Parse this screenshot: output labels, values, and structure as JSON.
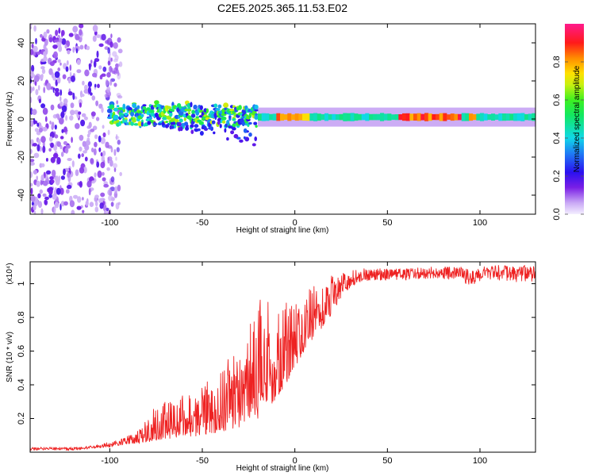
{
  "figure_title": "C2E5.2025.365.11.53.E02",
  "colors": {
    "snr_line": "#ee2222",
    "axis": "#000000"
  },
  "chart_data": [
    {
      "type": "heatmap",
      "xlabel": "Height of straight line (km)",
      "ylabel": "Frequency (Hz)",
      "xlim": [
        -143,
        130
      ],
      "ylim": [
        -50,
        50
      ],
      "xticks": [
        -100,
        -50,
        0,
        50,
        100
      ],
      "yticks": [
        -40,
        -20,
        0,
        20,
        40
      ],
      "colorbar": {
        "label": "Normalized spectral amplitude",
        "range": [
          0,
          1
        ],
        "ticks": [
          "0.0",
          "0.2",
          "0.4",
          "0.6",
          "0.8"
        ],
        "tick_values": [
          0.0,
          0.2,
          0.4,
          0.6,
          0.8
        ],
        "colormap": "rainbow: white-lavender -> purple -> blue -> cyan -> green -> yellow -> red -> magenta"
      },
      "features": [
        {
          "region": "scattered noise",
          "x_range": [
            -143,
            -100
          ],
          "freq_range": [
            -50,
            50
          ],
          "amplitude": [
            0.05,
            0.2
          ]
        },
        {
          "region": "turbulent band",
          "x_range": [
            -100,
            -20
          ],
          "freq_center": 2,
          "freq_halfwidth": 4,
          "amplitude": [
            0.2,
            0.7
          ]
        },
        {
          "region": "narrow line",
          "x_range": [
            -20,
            130
          ],
          "freq_center": 1,
          "freq_halfwidth": 2,
          "amplitude": [
            0.4,
            0.9
          ]
        }
      ]
    },
    {
      "type": "line",
      "xlabel": "Height of straight line (km)",
      "ylabel": "SNR (10 * v/v)",
      "multiplier": "(x10⁴)",
      "xlim": [
        -143,
        130
      ],
      "ylim": [
        0,
        1.13
      ],
      "xticks": [
        -100,
        -50,
        0,
        50,
        100
      ],
      "yticks": [
        0.2,
        0.4,
        0.6,
        0.8,
        1
      ],
      "series": [
        {
          "name": "SNR",
          "x": [
            -143,
            -120,
            -110,
            -100,
            -95,
            -90,
            -85,
            -80,
            -75,
            -70,
            -60,
            -50,
            -40,
            -30,
            -20,
            -15,
            -10,
            -5,
            0,
            5,
            10,
            15,
            20,
            25,
            30,
            35,
            40,
            50,
            60,
            70,
            80,
            90,
            95,
            100,
            110,
            120,
            130
          ],
          "envelope_low": [
            0.01,
            0.01,
            0.02,
            0.03,
            0.04,
            0.05,
            0.05,
            0.06,
            0.07,
            0.08,
            0.09,
            0.1,
            0.12,
            0.15,
            0.2,
            0.25,
            0.32,
            0.4,
            0.5,
            0.6,
            0.68,
            0.74,
            0.82,
            0.92,
            0.98,
            1.01,
            1.02,
            1.02,
            1.02,
            1.03,
            1.03,
            1.02,
            0.98,
            1.01,
            1.02,
            1.01,
            1.01
          ],
          "envelope_high": [
            0.03,
            0.03,
            0.04,
            0.06,
            0.08,
            0.1,
            0.13,
            0.2,
            0.28,
            0.3,
            0.34,
            0.4,
            0.48,
            0.7,
            0.9,
            0.95,
            0.88,
            0.92,
            0.92,
            0.95,
            1.0,
            1.02,
            1.05,
            1.07,
            1.08,
            1.09,
            1.09,
            1.09,
            1.09,
            1.1,
            1.1,
            1.1,
            1.08,
            1.1,
            1.11,
            1.11,
            1.11
          ]
        }
      ]
    }
  ]
}
